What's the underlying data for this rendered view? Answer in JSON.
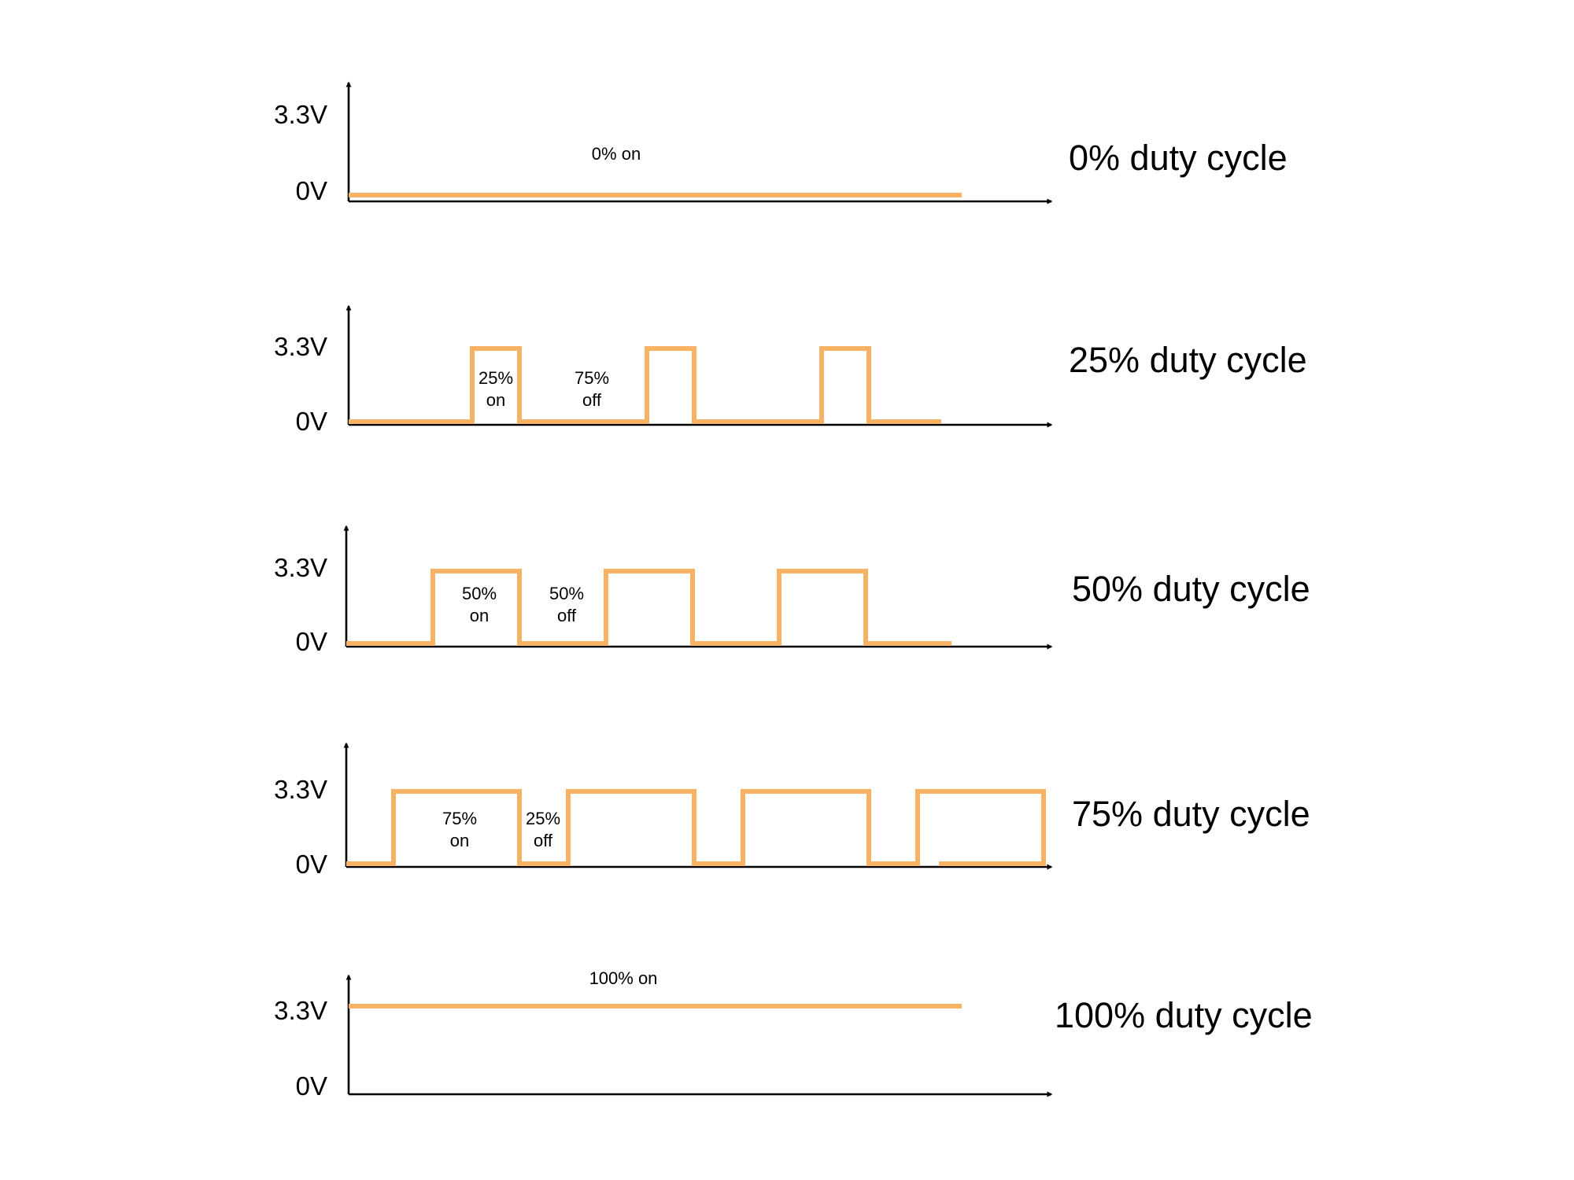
{
  "diagram_data": {
    "signal_color": "#f7b263",
    "axis_color": "#000000",
    "panels": [
      {
        "id": "duty-0",
        "duty_cycle_percent": 0,
        "high_label": "3.3V",
        "low_label": "0V",
        "title": "0% duty cycle",
        "annotations": [
          {
            "lines": [
              "0% on"
            ]
          }
        ]
      },
      {
        "id": "duty-25",
        "duty_cycle_percent": 25,
        "high_label": "3.3V",
        "low_label": "0V",
        "title": "25% duty cycle",
        "annotations": [
          {
            "lines": [
              "25%",
              "on"
            ]
          },
          {
            "lines": [
              "75%",
              "off"
            ]
          }
        ]
      },
      {
        "id": "duty-50",
        "duty_cycle_percent": 50,
        "high_label": "3.3V",
        "low_label": "0V",
        "title": "50% duty cycle",
        "annotations": [
          {
            "lines": [
              "50%",
              "on"
            ]
          },
          {
            "lines": [
              "50%",
              "off"
            ]
          }
        ]
      },
      {
        "id": "duty-75",
        "duty_cycle_percent": 75,
        "high_label": "3.3V",
        "low_label": "0V",
        "title": "75% duty cycle",
        "annotations": [
          {
            "lines": [
              "75%",
              "on"
            ]
          },
          {
            "lines": [
              "25%",
              "off"
            ]
          }
        ]
      },
      {
        "id": "duty-100",
        "duty_cycle_percent": 100,
        "high_label": "3.3V",
        "low_label": "0V",
        "title": "100% duty cycle",
        "annotations": [
          {
            "lines": [
              "100% on"
            ]
          }
        ]
      }
    ]
  }
}
